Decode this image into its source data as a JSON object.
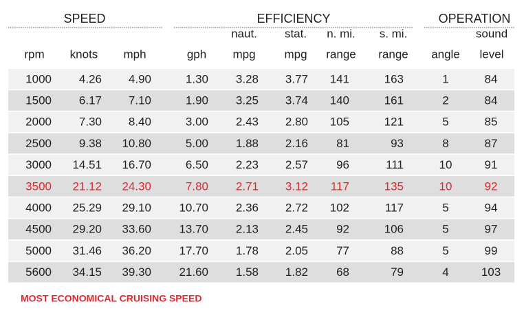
{
  "groups": [
    {
      "title": "SPEED",
      "span": [
        0,
        2
      ]
    },
    {
      "title": "EFFICIENCY",
      "span": [
        3,
        7
      ]
    },
    {
      "title": "OPERATION",
      "span": [
        8,
        9
      ]
    }
  ],
  "columns": [
    [
      "rpm"
    ],
    [
      "knots"
    ],
    [
      "mph"
    ],
    [
      "gph"
    ],
    [
      "naut.",
      "mpg"
    ],
    [
      "stat.",
      "mpg"
    ],
    [
      "n. mi.",
      "range"
    ],
    [
      "s. mi.",
      "range"
    ],
    [
      "angle"
    ],
    [
      "sound",
      "level"
    ]
  ],
  "rows": [
    [
      "1000",
      "4.26",
      "4.90",
      "1.30",
      "3.28",
      "3.77",
      "141",
      "163",
      "1",
      "84"
    ],
    [
      "1500",
      "6.17",
      "7.10",
      "1.90",
      "3.25",
      "3.74",
      "140",
      "161",
      "2",
      "84"
    ],
    [
      "2000",
      "7.30",
      "8.40",
      "3.00",
      "2.43",
      "2.80",
      "105",
      "121",
      "5",
      "85"
    ],
    [
      "2500",
      "9.38",
      "10.80",
      "5.00",
      "1.88",
      "2.16",
      "81",
      "93",
      "8",
      "87"
    ],
    [
      "3000",
      "14.51",
      "16.70",
      "6.50",
      "2.23",
      "2.57",
      "96",
      "111",
      "10",
      "91"
    ],
    [
      "3500",
      "21.12",
      "24.30",
      "7.80",
      "2.71",
      "3.12",
      "117",
      "135",
      "10",
      "92"
    ],
    [
      "4000",
      "25.29",
      "29.10",
      "10.70",
      "2.36",
      "2.72",
      "102",
      "117",
      "5",
      "94"
    ],
    [
      "4500",
      "29.20",
      "33.60",
      "13.70",
      "2.13",
      "2.45",
      "92",
      "106",
      "5",
      "97"
    ],
    [
      "5000",
      "31.46",
      "36.20",
      "17.70",
      "1.78",
      "2.05",
      "77",
      "88",
      "5",
      "99"
    ],
    [
      "5600",
      "34.15",
      "39.30",
      "21.60",
      "1.58",
      "1.82",
      "68",
      "79",
      "4",
      "103"
    ]
  ],
  "highlight_row": 5,
  "highlight_color": "#e3262b",
  "note": "MOST ECONOMICAL CRUISING SPEED"
}
